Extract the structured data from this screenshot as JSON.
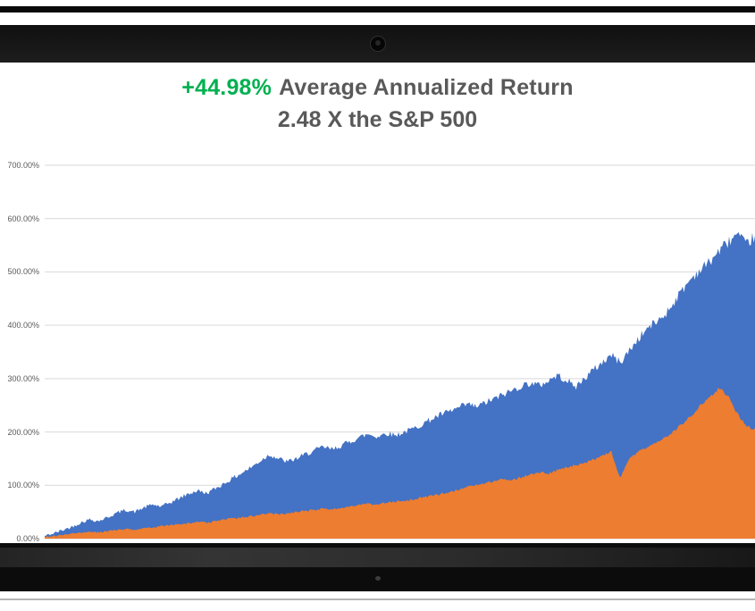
{
  "header": {
    "title_highlight": "+44.98%",
    "title_text": "Average Annualized Return",
    "subtitle": "2.48 X the S&P 500"
  },
  "colors": {
    "highlight_green": "#00B050",
    "title_gray": "#595959",
    "gridline": "#D9D9D9",
    "blue_area": "#4472C4",
    "orange_area": "#ED7D31"
  },
  "chart_data": {
    "type": "area",
    "title": "+44.98% Average Annualized Return",
    "subtitle": "2.48 X the S&P 500",
    "ylim": [
      0,
      700
    ],
    "ytick_step": 100,
    "ytick_labels": [
      "700.00%",
      "600.00%",
      "500.00%",
      "400.00%",
      "300.00%",
      "200.00%",
      "100.00%",
      "0.00%"
    ],
    "grid": true,
    "legend_position": "none",
    "xlabel": "",
    "ylabel": "",
    "series": [
      {
        "key": "strategy",
        "name": "Blue area (strategy cumulative return %)",
        "color": "#4472C4",
        "values": [
          5,
          10,
          16,
          22,
          30,
          36,
          33,
          40,
          48,
          54,
          50,
          58,
          64,
          60,
          68,
          76,
          84,
          90,
          85,
          94,
          104,
          114,
          124,
          134,
          146,
          158,
          150,
          144,
          150,
          158,
          165,
          172,
          167,
          175,
          182,
          190,
          196,
          191,
          198,
          194,
          200,
          206,
          215,
          224,
          232,
          238,
          245,
          252,
          247,
          255,
          262,
          270,
          278,
          286,
          292,
          287,
          296,
          306,
          298,
          284,
          300,
          316,
          330,
          345,
          330,
          352,
          374,
          394,
          406,
          420,
          444,
          468,
          490,
          505,
          520,
          540,
          556,
          570,
          550,
          568
        ]
      },
      {
        "key": "sp500",
        "name": "Orange area (S&P 500 cumulative return %)",
        "color": "#ED7D31",
        "values": [
          3,
          5,
          7,
          9,
          11,
          13,
          12,
          14,
          16,
          18,
          17,
          19,
          21,
          23,
          25,
          27,
          29,
          31,
          30,
          33,
          36,
          38,
          40,
          42,
          45,
          47,
          46,
          48,
          50,
          52,
          54,
          56,
          55,
          58,
          60,
          63,
          65,
          64,
          67,
          69,
          71,
          74,
          77,
          80,
          84,
          88,
          92,
          96,
          100,
          104,
          108,
          112,
          110,
          115,
          120,
          125,
          122,
          128,
          133,
          138,
          142,
          148,
          155,
          164,
          112,
          150,
          162,
          172,
          180,
          190,
          202,
          216,
          232,
          250,
          266,
          283,
          266,
          236,
          210,
          205
        ]
      }
    ]
  }
}
